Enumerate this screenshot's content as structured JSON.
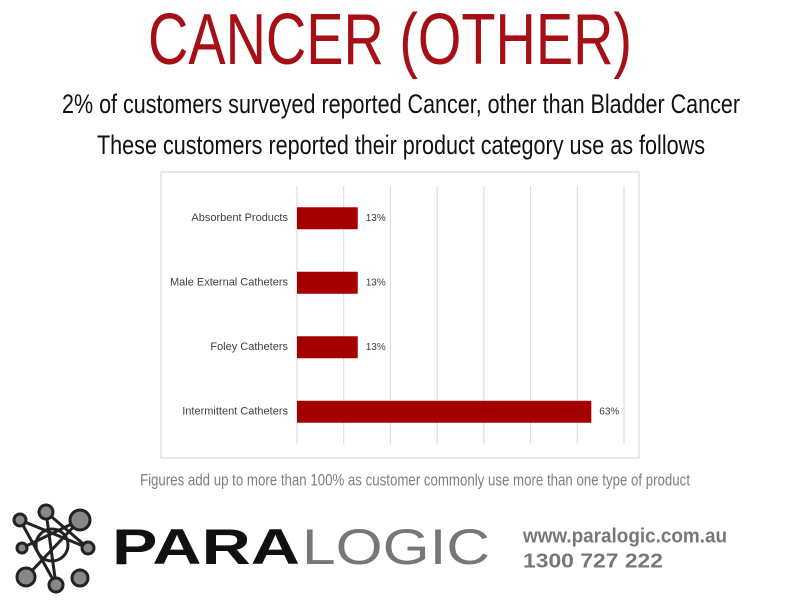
{
  "chart_data": {
    "type": "hbar",
    "title": "CANCER (OTHER)",
    "subtitle": [
      "2% of customers surveyed reported Cancer, other than Bladder Cancer",
      "These customers reported their product category use as follows"
    ],
    "categories": [
      "Absorbent Products",
      "Male External Catheters",
      "Foley Catheters",
      "Intermittent Catheters"
    ],
    "values": [
      13,
      13,
      13,
      63
    ],
    "value_labels": [
      "13%",
      "13%",
      "13%",
      "63%"
    ],
    "color": "#a50000",
    "xlim": [
      0,
      70
    ],
    "xticks": [
      0,
      10,
      20,
      30,
      40,
      50,
      60,
      70
    ],
    "grid": true,
    "note": "Figures add up to more than 100% as customer commonly use more than one type of product"
  },
  "branding": {
    "logo": [
      "PARA",
      "LOGIC"
    ],
    "website": "www.paralogic.com.au",
    "phone": "1300 727 222"
  }
}
